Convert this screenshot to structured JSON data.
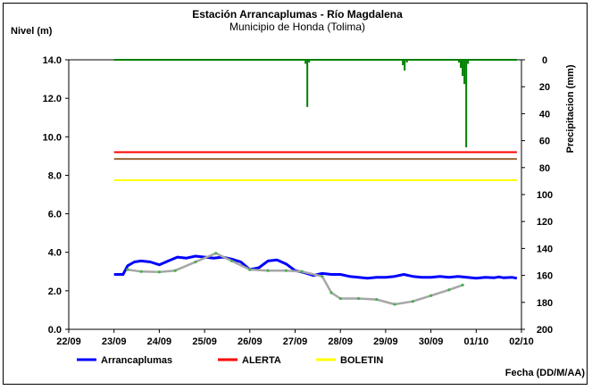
{
  "chart_data": {
    "type": "line",
    "title": "Estación Arrancaplumas - Río Magdalena",
    "subtitle": "Municipio de Honda (Tolima)",
    "ylabel": "Nivel (m)",
    "y2label": "Precipitacion (mm)",
    "xlabel": "Fecha (DD/M/AA)",
    "x_ticks": [
      "22/09",
      "23/09",
      "24/09",
      "25/09",
      "26/09",
      "27/09",
      "28/09",
      "29/09",
      "30/09",
      "01/10",
      "02/10"
    ],
    "y_ticks": [
      "0.0",
      "2.0",
      "4.0",
      "6.0",
      "8.0",
      "10.0",
      "12.0",
      "14.0"
    ],
    "y2_ticks": [
      "0",
      "20",
      "40",
      "60",
      "80",
      "100",
      "120",
      "140",
      "160",
      "180",
      "200"
    ],
    "ylim": [
      0,
      14
    ],
    "y2lim": [
      200,
      0
    ],
    "xlim_days_from_22_09": [
      0,
      10
    ],
    "legend_position": "bottom",
    "series": [
      {
        "name": "Arrancaplumas",
        "color": "#0000ff",
        "x_day": [
          1.0,
          1.2,
          1.3,
          1.45,
          1.6,
          1.8,
          2.0,
          2.2,
          2.4,
          2.6,
          2.8,
          3.0,
          3.2,
          3.4,
          3.6,
          3.8,
          4.0,
          4.2,
          4.4,
          4.6,
          4.8,
          5.0,
          5.2,
          5.4,
          5.6,
          5.8,
          6.0,
          6.2,
          6.4,
          6.6,
          6.8,
          7.0,
          7.2,
          7.4,
          7.6,
          7.8,
          8.0,
          8.2,
          8.4,
          8.6,
          8.8,
          9.0,
          9.2,
          9.4,
          9.5,
          9.6,
          9.8,
          9.9
        ],
        "values": [
          2.85,
          2.85,
          3.3,
          3.5,
          3.55,
          3.5,
          3.35,
          3.55,
          3.75,
          3.7,
          3.8,
          3.75,
          3.7,
          3.75,
          3.65,
          3.5,
          3.1,
          3.2,
          3.55,
          3.6,
          3.4,
          3.05,
          2.95,
          2.8,
          2.9,
          2.85,
          2.85,
          2.75,
          2.7,
          2.65,
          2.7,
          2.7,
          2.75,
          2.85,
          2.75,
          2.7,
          2.7,
          2.75,
          2.7,
          2.75,
          2.7,
          2.65,
          2.7,
          2.68,
          2.72,
          2.68,
          2.7,
          2.65
        ]
      },
      {
        "name": "",
        "color": "#a6a6a6",
        "x_day": [
          1.3,
          1.6,
          2.0,
          2.35,
          2.8,
          3.25,
          3.6,
          4.0,
          4.4,
          4.8,
          5.15,
          5.6,
          5.8,
          6.0,
          6.4,
          6.8,
          7.2,
          7.6,
          8.0,
          8.4,
          8.7
        ],
        "values": [
          3.1,
          3.0,
          2.98,
          3.05,
          3.5,
          3.95,
          3.55,
          3.1,
          3.05,
          3.05,
          3.0,
          2.75,
          1.9,
          1.6,
          1.6,
          1.55,
          1.3,
          1.45,
          1.75,
          2.05,
          2.3
        ]
      },
      {
        "name": "ALERTA",
        "color": "#ff0000",
        "level": 9.2,
        "x_range": [
          1.0,
          9.9
        ]
      },
      {
        "name": "",
        "color": "#996633",
        "level": 8.85,
        "x_range": [
          1.0,
          9.9
        ]
      },
      {
        "name": "BOLETIN",
        "color": "#ffff00",
        "level": 7.75,
        "x_range": [
          1.0,
          9.9
        ]
      },
      {
        "name": "",
        "type": "bar",
        "axis": "secondary",
        "color": "#008000",
        "x_day": [
          5.23,
          5.27,
          5.31,
          7.38,
          7.42,
          7.47,
          8.62,
          8.66,
          8.7,
          8.74,
          8.78,
          8.82
        ],
        "values": [
          3,
          35,
          2,
          4,
          8,
          2,
          2,
          6,
          12,
          18,
          65,
          3
        ]
      }
    ]
  }
}
